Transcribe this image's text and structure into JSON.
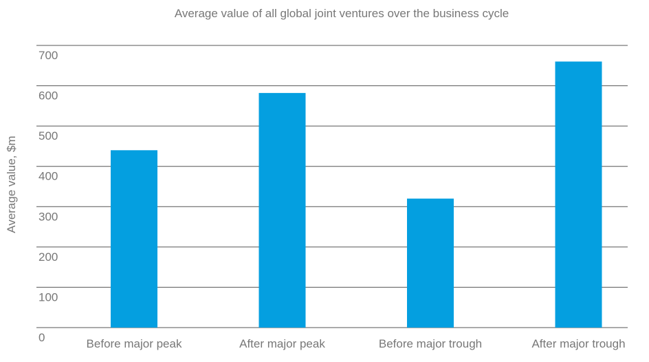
{
  "chart_data": {
    "type": "bar",
    "title": "Average value of all global joint ventures over the business cycle",
    "xlabel": "",
    "ylabel": "Average value, $m",
    "categories": [
      "Before major peak",
      "After major peak",
      "Before major trough",
      "After major trough"
    ],
    "values": [
      440,
      582,
      320,
      660
    ],
    "ylim": [
      0,
      700
    ],
    "yticks": [
      "0",
      "100",
      "200",
      "300",
      "400",
      "500",
      "600",
      "700"
    ],
    "grid": true,
    "legend": "none",
    "colors": {
      "bar": "#049fe0",
      "grid": "#555555",
      "text": "#777777"
    }
  }
}
